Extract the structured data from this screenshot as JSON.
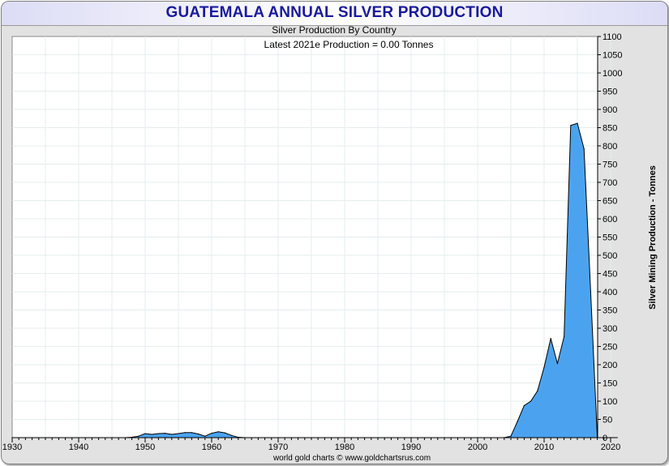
{
  "header": {
    "title": "GUATEMALA ANNUAL SILVER PRODUCTION"
  },
  "chart_data": {
    "type": "area",
    "title": "GUATEMALA ANNUAL SILVER PRODUCTION",
    "subtitle": "Silver Production By Country",
    "annotation": "Latest 2021e Production = 0.00 Tonnes",
    "xlabel": "",
    "ylabel": "Silver Mining Production - Tonnes",
    "source": "world gold charts © www.goldchartsrus.com",
    "xlim": [
      1930,
      2021
    ],
    "ylim": [
      0,
      1100
    ],
    "x_ticks": [
      1930,
      1940,
      1950,
      1960,
      1970,
      1980,
      1990,
      2000,
      2010,
      2020
    ],
    "y_ticks": [
      0,
      50,
      100,
      150,
      200,
      250,
      300,
      350,
      400,
      450,
      500,
      550,
      600,
      650,
      700,
      750,
      800,
      850,
      900,
      950,
      1000,
      1050,
      1100
    ],
    "grid": true,
    "y_axis_position": "right",
    "fill_color": "#4ba3f0",
    "line_color": "#000000",
    "x": [
      1930,
      1947,
      1948,
      1949,
      1950,
      1951,
      1952,
      1953,
      1954,
      1955,
      1956,
      1957,
      1958,
      1959,
      1960,
      1961,
      1962,
      1963,
      1964,
      1965,
      1990,
      2004,
      2005,
      2006,
      2007,
      2008,
      2009,
      2010,
      2011,
      2012,
      2013,
      2014,
      2015,
      2016,
      2017,
      2018,
      2019,
      2020,
      2021
    ],
    "values": [
      0,
      0,
      1,
      4,
      11,
      9,
      11,
      12,
      9,
      11,
      14,
      14,
      10,
      4,
      12,
      16,
      13,
      6,
      1,
      0,
      0,
      0,
      4,
      45,
      88,
      100,
      128,
      193,
      272,
      203,
      277,
      856,
      862,
      792,
      400,
      0,
      0,
      0,
      0
    ]
  }
}
